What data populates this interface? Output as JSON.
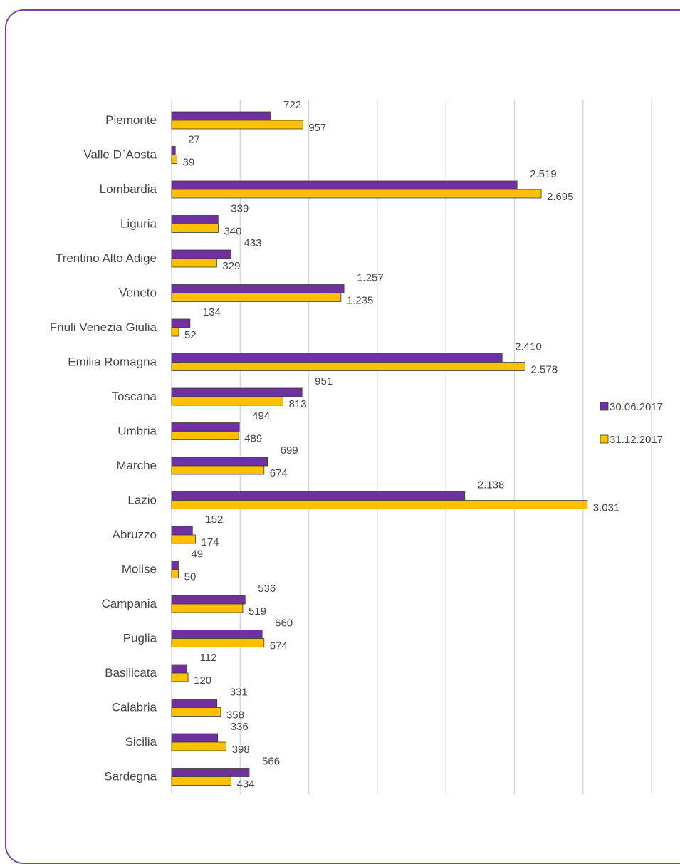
{
  "chart_data": {
    "type": "bar",
    "orientation": "horizontal",
    "categories": [
      "Piemonte",
      "Valle D`Aosta",
      "Lombardia",
      "Liguria",
      "Trentino Alto Adige",
      "Veneto",
      "Friuli Venezia Giulia",
      "Emilia Romagna",
      "Toscana",
      "Umbria",
      "Marche",
      "Lazio",
      "Abruzzo",
      "Molise",
      "Campania",
      "Puglia",
      "Basilicata",
      "Calabria",
      "Sicilia",
      "Sardegna"
    ],
    "series": [
      {
        "name": "30.06.2017",
        "color": "#7030a0",
        "values": [
          722,
          27,
          2519,
          339,
          433,
          1257,
          134,
          2410,
          951,
          494,
          699,
          2138,
          152,
          49,
          536,
          660,
          112,
          331,
          336,
          566
        ],
        "labels": [
          "722",
          "27",
          "2.519",
          "339",
          "433",
          "1.257",
          "134",
          "2.410",
          "951",
          "494",
          "699",
          "2.138",
          "152",
          "49",
          "536",
          "660",
          "112",
          "331",
          "336",
          "566"
        ]
      },
      {
        "name": "31.12.2017",
        "color": "#ffc000",
        "values": [
          957,
          39,
          2695,
          340,
          329,
          1235,
          52,
          2578,
          813,
          489,
          674,
          3031,
          174,
          50,
          519,
          674,
          120,
          358,
          398,
          434
        ],
        "labels": [
          "957",
          "39",
          "2.695",
          "340",
          "329",
          "1.235",
          "52",
          "2.578",
          "813",
          "489",
          "674",
          "3.031",
          "174",
          "50",
          "519",
          "674",
          "120",
          "358",
          "398",
          "434"
        ]
      }
    ],
    "xlim": [
      0,
      3500
    ],
    "grid_step": 500,
    "gridlines": true,
    "legend": "right"
  }
}
